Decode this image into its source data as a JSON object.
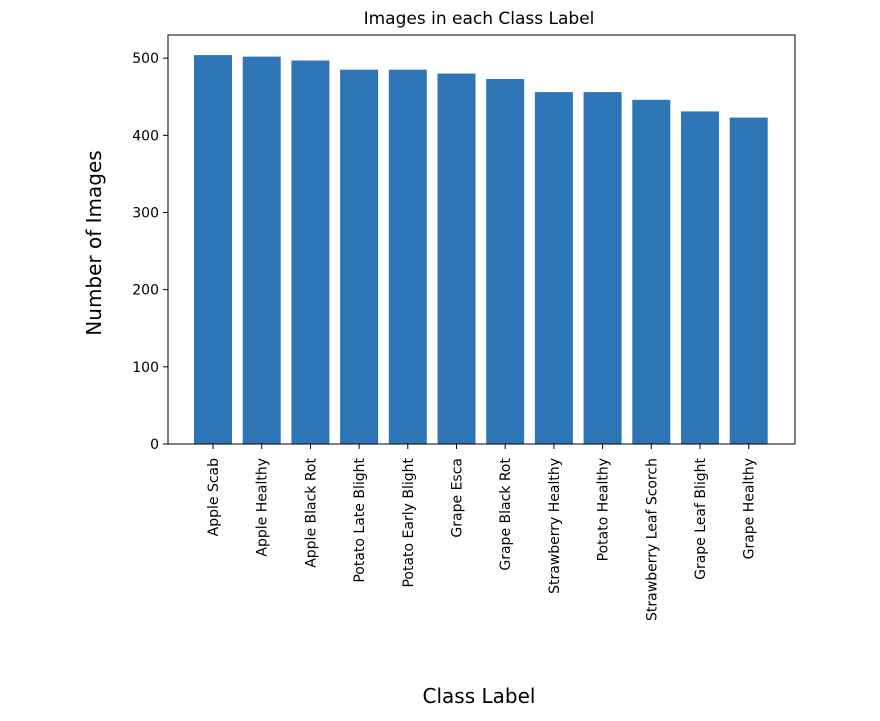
{
  "chart_data": {
    "type": "bar",
    "title": "Images in each Class Label",
    "xlabel": "Class Label",
    "ylabel": "Number of Images",
    "categories": [
      "Apple Scab",
      "Apple Healthy",
      "Apple Black Rot",
      "Potato Late Blight",
      "Potato Early Blight",
      "Grape Esca",
      "Grape Black Rot",
      "Strawberry Healthy",
      "Potato Healthy",
      "Strawberry Leaf Scorch",
      "Grape Leaf Blight",
      "Grape Healthy"
    ],
    "values": [
      504,
      502,
      497,
      485,
      485,
      480,
      473,
      456,
      456,
      446,
      431,
      423
    ],
    "ylim": [
      0,
      530
    ],
    "yticks": [
      0,
      100,
      200,
      300,
      400,
      500
    ],
    "bar_color": "#2e75b6",
    "grid": false,
    "legend": "none"
  }
}
